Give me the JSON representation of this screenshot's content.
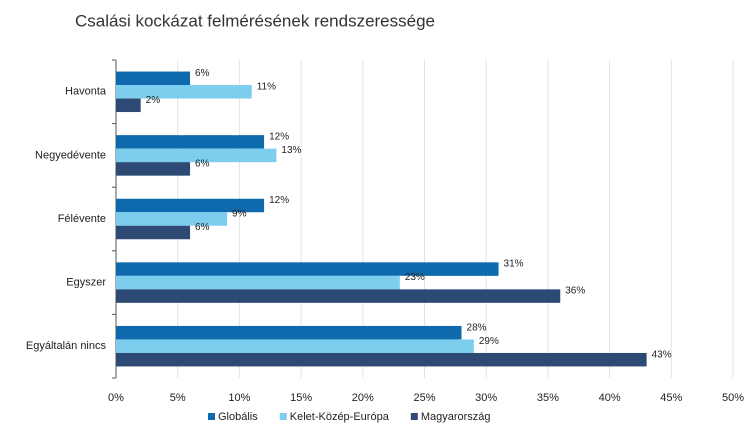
{
  "chart_data": {
    "type": "bar",
    "orientation": "horizontal",
    "title": "Csalási kockázat felmérésének rendszeressége",
    "categories": [
      "Havonta",
      "Negyedévente",
      "Félévente",
      "Egyszer",
      "Egyáltalán nincs"
    ],
    "series": [
      {
        "name": "Globális",
        "color": "#0f6aad",
        "values": [
          6,
          12,
          12,
          31,
          28
        ],
        "value_labels": [
          "6%",
          "12%",
          "12%",
          "31%",
          "28%"
        ]
      },
      {
        "name": "Kelet-Közép-Európa",
        "color": "#7ccdee",
        "values": [
          11,
          13,
          9,
          23,
          29
        ],
        "value_labels": [
          "11%",
          "13%",
          "9%",
          "23%",
          "29%"
        ]
      },
      {
        "name": "Magyarország",
        "color": "#2d4a74",
        "values": [
          2,
          6,
          6,
          36,
          43
        ],
        "value_labels": [
          "2%",
          "6%",
          "6%",
          "36%",
          "43%"
        ]
      }
    ],
    "xlim": [
      0,
      50
    ],
    "xticks": [
      {
        "value": 0,
        "label": "0%"
      },
      {
        "value": 5,
        "label": "5%"
      },
      {
        "value": 10,
        "label": "10%"
      },
      {
        "value": 15,
        "label": "15%"
      },
      {
        "value": 20,
        "label": "20%"
      },
      {
        "value": 25,
        "label": "25%"
      },
      {
        "value": 30,
        "label": "30%"
      },
      {
        "value": 35,
        "label": "35%"
      },
      {
        "value": 40,
        "label": "40%"
      },
      {
        "value": 45,
        "label": "45%"
      },
      {
        "value": 50,
        "label": "50%"
      }
    ],
    "grid": true,
    "legend": "bottom"
  }
}
